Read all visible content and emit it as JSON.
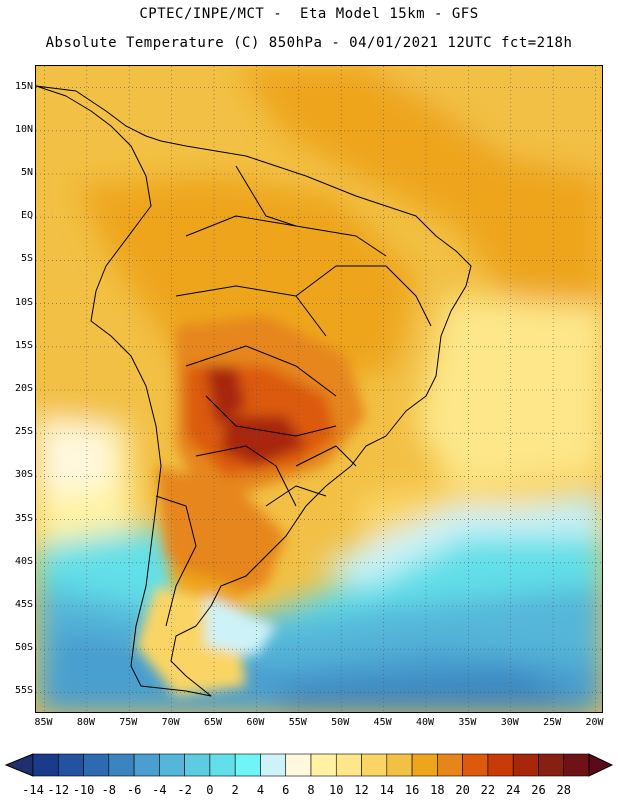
{
  "header": {
    "line1": "CPTEC/INPE/MCT -  Eta Model 15km - GFS",
    "line2": "Absolute Temperature (C) 850hPa - 04/01/2021 12UTC fct=218h"
  },
  "map": {
    "lat_labels": [
      "15N",
      "10N",
      "5N",
      "EQ",
      "5S",
      "10S",
      "15S",
      "20S",
      "25S",
      "30S",
      "35S",
      "40S",
      "45S",
      "50S",
      "55S"
    ],
    "lon_labels": [
      "85W",
      "80W",
      "75W",
      "70W",
      "65W",
      "60W",
      "55W",
      "50W",
      "45W",
      "40W",
      "35W",
      "30W",
      "25W",
      "20W"
    ],
    "lat_range": [
      17.5,
      -57.5
    ],
    "lon_range": [
      -86,
      -19
    ],
    "gridlines": "dotted"
  },
  "colorbar": {
    "labels": [
      "-14",
      "-12",
      "-10",
      "-8",
      "-6",
      "-4",
      "-2",
      "0",
      "2",
      "4",
      "6",
      "8",
      "10",
      "12",
      "14",
      "16",
      "18",
      "20",
      "22",
      "24",
      "26",
      "28"
    ],
    "colors": [
      "#1a3a8c",
      "#2451a0",
      "#2e6ab0",
      "#3a85c0",
      "#4a9fcf",
      "#55b6d9",
      "#5dcbe0",
      "#62dfe8",
      "#6ff5f5",
      "#cdf3f8",
      "#fff8de",
      "#fff3a3",
      "#fde78a",
      "#fad565",
      "#f2c044",
      "#eea51c",
      "#e6861a",
      "#dc5a0c",
      "#c83b08",
      "#a8270a",
      "#852012",
      "#6e1218"
    ],
    "unit": "C"
  }
}
